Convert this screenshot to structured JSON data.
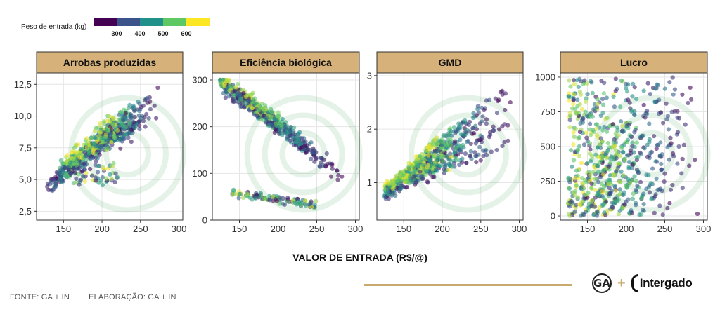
{
  "legend": {
    "title": "Peso de entrada (kg)",
    "ticks": [
      "300",
      "400",
      "500",
      "600"
    ],
    "colors": [
      "#440154",
      "#3b528b",
      "#21918c",
      "#5ec962",
      "#fde725"
    ]
  },
  "x_title": "VALOR DE ENTRADA (R$/@)",
  "footer": {
    "source": "FONTE: GA + IN",
    "separator": "|",
    "credits": "ELABORAÇÃO: GA + IN"
  },
  "branding": {
    "ga_logo": "GA",
    "plus": "+",
    "intergado": "Intergado"
  },
  "chart_data": [
    {
      "type": "scatter",
      "title": "Arrobas produzidas",
      "xlim": [
        115,
        305
      ],
      "ylim": [
        1.8,
        13.4
      ],
      "x_ticks": [
        150,
        200,
        250,
        300
      ],
      "y_ticks": [
        2.5,
        5.0,
        7.5,
        10.0,
        12.5
      ],
      "y_tick_labels": [
        "2,5",
        "5,0",
        "7,5",
        "10,0",
        "12,5"
      ],
      "x_ticks_labels": [
        "150",
        "200",
        "250",
        "300"
      ]
    },
    {
      "type": "scatter",
      "title": "Eficiência biológica",
      "xlim": [
        115,
        305
      ],
      "ylim": [
        0,
        315
      ],
      "x_ticks": [
        150,
        200,
        250,
        300
      ],
      "y_ticks": [
        0,
        100,
        200,
        300
      ],
      "y_tick_labels": [
        "0",
        "100",
        "200",
        "300"
      ],
      "x_ticks_labels": [
        "150",
        "200",
        "250",
        "300"
      ]
    },
    {
      "type": "scatter",
      "title": "GMD",
      "xlim": [
        115,
        305
      ],
      "ylim": [
        0.3,
        3.05
      ],
      "x_ticks": [
        150,
        200,
        250,
        300
      ],
      "y_ticks": [
        1,
        2,
        3
      ],
      "y_tick_labels": [
        "1",
        "2",
        "3"
      ],
      "x_ticks_labels": [
        "150",
        "200",
        "250",
        "300"
      ]
    },
    {
      "type": "scatter",
      "title": "Lucro",
      "xlim": [
        115,
        305
      ],
      "ylim": [
        -30,
        1030
      ],
      "x_ticks": [
        150,
        200,
        250,
        300
      ],
      "y_ticks": [
        0,
        250,
        500,
        750,
        1000
      ],
      "y_tick_labels": [
        "0",
        "250",
        "500",
        "750",
        "1000"
      ],
      "x_ticks_labels": [
        "150",
        "200",
        "250",
        "300"
      ]
    }
  ]
}
